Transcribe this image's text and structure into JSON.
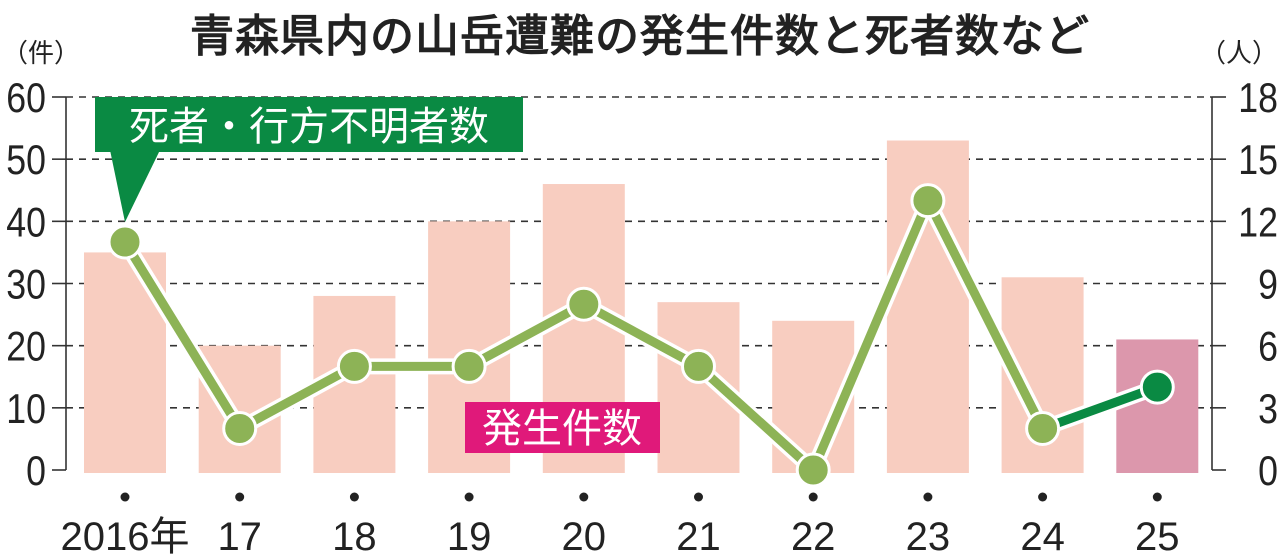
{
  "chart_data": {
    "type": "bar+line",
    "title": "青森県内の山岳遭難の発生件数と死者数など",
    "left_unit": "（件）",
    "right_unit": "（人）",
    "categories": [
      "2016年",
      "17",
      "18",
      "19",
      "20",
      "21",
      "22",
      "23",
      "24",
      "25"
    ],
    "left_ylim": [
      0,
      60
    ],
    "left_ticks": [
      "0",
      "10",
      "20",
      "30",
      "40",
      "50",
      "60"
    ],
    "right_ylim": [
      0,
      18
    ],
    "right_ticks": [
      "0",
      "3",
      "6",
      "9",
      "12",
      "15",
      "18"
    ],
    "grid": true,
    "series": [
      {
        "name": "発生件数",
        "type": "bar",
        "axis": "left",
        "values": [
          35,
          20,
          28,
          40,
          46,
          27,
          24,
          53,
          31,
          21
        ],
        "color": "#f8cdc0",
        "highlight_color": "#dc97ac",
        "label_color": "#e0197a"
      },
      {
        "name": "死者・行方不明者数",
        "type": "line",
        "axis": "right",
        "values": [
          11,
          2,
          5,
          5,
          8,
          5,
          0,
          13,
          2,
          4
        ],
        "color": "#8db356",
        "highlight_color": "#0a8a43",
        "label_color": "#0a8a43"
      }
    ]
  }
}
